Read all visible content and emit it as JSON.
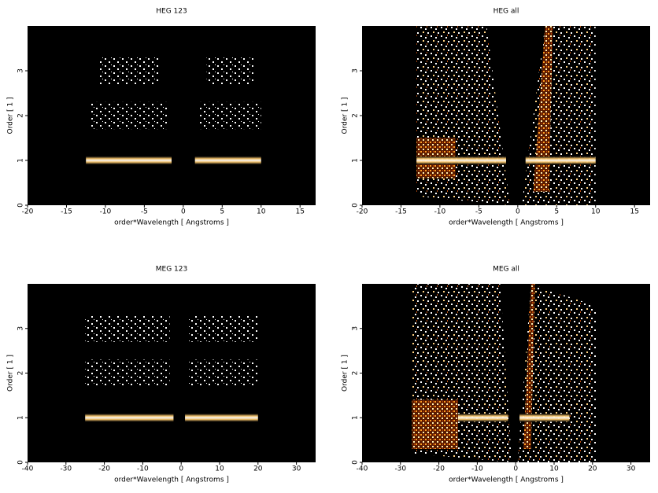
{
  "chart_data": [
    {
      "type": "density",
      "title": "HEG 123",
      "x_label": "order*Wavelength [ Angstroms ]",
      "y_label": "Order [ 1 ]",
      "xlim": [
        -20,
        17
      ],
      "xticks": [
        -20,
        -15,
        -10,
        -5,
        0,
        5,
        10,
        15
      ],
      "ylim": [
        0,
        4
      ],
      "yticks": [
        0,
        1,
        2,
        3
      ],
      "bands": [
        {
          "x": [
            -12.5,
            -1.5
          ],
          "y": 1,
          "style": "dense"
        },
        {
          "x": [
            1.5,
            10
          ],
          "y": 1,
          "style": "dense"
        },
        {
          "x": [
            -12,
            -2
          ],
          "y": 2,
          "style": "sparse"
        },
        {
          "x": [
            2,
            10
          ],
          "y": 2,
          "style": "sparse"
        },
        {
          "x": [
            -11,
            -3
          ],
          "y": 3,
          "style": "sparse"
        },
        {
          "x": [
            3,
            9
          ],
          "y": 3,
          "style": "sparse"
        }
      ],
      "polygons": []
    },
    {
      "type": "density",
      "title": "HEG all",
      "x_label": "order*Wavelength [ Angstroms ]",
      "y_label": "Order [ 1 ]",
      "xlim": [
        -20,
        17
      ],
      "xticks": [
        -20,
        -15,
        -10,
        -5,
        0,
        5,
        10,
        15
      ],
      "ylim": [
        0,
        4
      ],
      "yticks": [
        0,
        1,
        2,
        3
      ],
      "bands": [
        {
          "x": [
            -13,
            -1.5
          ],
          "y": 1,
          "style": "dense"
        },
        {
          "x": [
            1,
            10
          ],
          "y": 1,
          "style": "dense"
        }
      ],
      "polygons": [
        {
          "points": [
            [
              -13,
              0.2
            ],
            [
              -1,
              0
            ],
            [
              -4,
              4
            ],
            [
              -13,
              4
            ]
          ],
          "style": "speck"
        },
        {
          "points": [
            [
              0.5,
              0
            ],
            [
              10,
              0
            ],
            [
              10,
              4
            ],
            [
              3.5,
              4
            ]
          ],
          "style": "speck"
        },
        {
          "points": [
            [
              -13,
              0.6
            ],
            [
              -8,
              0.6
            ],
            [
              -8,
              1.5
            ],
            [
              -13,
              1.5
            ]
          ],
          "style": "warm"
        },
        {
          "points": [
            [
              2,
              0.3
            ],
            [
              4,
              0.3
            ],
            [
              4.5,
              4
            ],
            [
              3.5,
              4
            ]
          ],
          "style": "warm"
        }
      ]
    },
    {
      "type": "density",
      "title": "MEG 123",
      "x_label": "order*Wavelength [ Angstroms ]",
      "y_label": "Order [ 1 ]",
      "xlim": [
        -40,
        35
      ],
      "xticks": [
        -40,
        -30,
        -20,
        -10,
        0,
        10,
        20,
        30
      ],
      "ylim": [
        0,
        4
      ],
      "yticks": [
        0,
        1,
        2,
        3
      ],
      "bands": [
        {
          "x": [
            -25,
            -2
          ],
          "y": 1,
          "style": "dense"
        },
        {
          "x": [
            1,
            20
          ],
          "y": 1,
          "style": "dense"
        },
        {
          "x": [
            -25,
            -3
          ],
          "y": 2,
          "style": "sparse"
        },
        {
          "x": [
            2,
            20
          ],
          "y": 2,
          "style": "sparse"
        },
        {
          "x": [
            -25,
            -3
          ],
          "y": 3,
          "style": "sparse"
        },
        {
          "x": [
            2,
            20
          ],
          "y": 3,
          "style": "sparse"
        }
      ],
      "polygons": []
    },
    {
      "type": "density",
      "title": "MEG all",
      "x_label": "order*Wavelength [ Angstroms ]",
      "y_label": "Order [ 1 ]",
      "xlim": [
        -40,
        35
      ],
      "xticks": [
        -40,
        -30,
        -20,
        -10,
        0,
        10,
        20,
        30
      ],
      "ylim": [
        0,
        4
      ],
      "yticks": [
        0,
        1,
        2,
        3
      ],
      "bands": [
        {
          "x": [
            -15,
            -2
          ],
          "y": 1,
          "style": "dense"
        },
        {
          "x": [
            1,
            14
          ],
          "y": 1,
          "style": "dense"
        }
      ],
      "polygons": [
        {
          "points": [
            [
              -27,
              0.2
            ],
            [
              -1,
              0
            ],
            [
              -4,
              4
            ],
            [
              -27,
              4
            ]
          ],
          "style": "speck"
        },
        {
          "points": [
            [
              0.5,
              0
            ],
            [
              21,
              0
            ],
            [
              21,
              3.5
            ],
            [
              4,
              4
            ]
          ],
          "style": "speck"
        },
        {
          "points": [
            [
              -27,
              0.3
            ],
            [
              -15,
              0.3
            ],
            [
              -15,
              1.4
            ],
            [
              -27,
              1.4
            ]
          ],
          "style": "warm"
        },
        {
          "points": [
            [
              2,
              0.3
            ],
            [
              4,
              0.3
            ],
            [
              5,
              4
            ],
            [
              4,
              4
            ]
          ],
          "style": "warm"
        }
      ]
    }
  ]
}
